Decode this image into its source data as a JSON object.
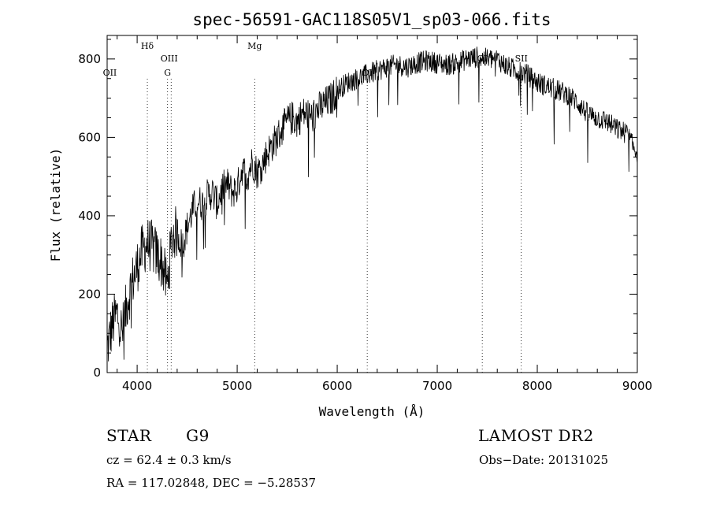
{
  "chart_data": {
    "type": "line",
    "title": "spec-56591-GAC118S05V1_sp03-066.fits",
    "xlabel": "Wavelength (Å)",
    "ylabel": "Flux (relative)",
    "xlim": [
      3700,
      9000
    ],
    "ylim": [
      0,
      860
    ],
    "xticks": [
      4000,
      5000,
      6000,
      7000,
      8000,
      9000
    ],
    "yticks": [
      0,
      200,
      400,
      600,
      800
    ],
    "grid": false,
    "series": [
      {
        "x": [
          3700,
          3750,
          3800,
          3850,
          3900,
          3950,
          4000,
          4050,
          4100,
          4150,
          4200,
          4250,
          4300,
          4350,
          4400,
          4450,
          4500,
          4550,
          4600,
          4650,
          4700,
          4750,
          4800,
          4850,
          4900,
          4950,
          5000,
          5050,
          5100,
          5150,
          5200,
          5250,
          5300,
          5350,
          5400,
          5450,
          5500,
          5550,
          5600,
          5650,
          5700,
          5750,
          5800,
          5850,
          5900,
          5950,
          6000,
          6100,
          6200,
          6300,
          6400,
          6500,
          6600,
          6700,
          6800,
          6900,
          7000,
          7100,
          7200,
          7300,
          7400,
          7500,
          7600,
          7700,
          7800,
          7900,
          8000,
          8100,
          8200,
          8300,
          8400,
          8500,
          8600,
          8700,
          8800,
          8900,
          8950,
          9000
        ],
        "y": [
          60,
          120,
          150,
          100,
          180,
          230,
          270,
          310,
          330,
          320,
          300,
          280,
          220,
          350,
          360,
          320,
          370,
          410,
          440,
          430,
          450,
          460,
          430,
          470,
          480,
          460,
          470,
          520,
          500,
          540,
          510,
          530,
          560,
          580,
          600,
          620,
          640,
          650,
          640,
          660,
          660,
          650,
          670,
          680,
          690,
          700,
          720,
          740,
          750,
          760,
          770,
          780,
          785,
          780,
          790,
          795,
          790,
          785,
          790,
          800,
          805,
          800,
          800,
          780,
          770,
          760,
          740,
          730,
          720,
          710,
          690,
          660,
          650,
          640,
          620,
          610,
          580,
          560
        ]
      }
    ],
    "annotations": [
      {
        "label": "OII",
        "x": 3727,
        "row": 3
      },
      {
        "label": "Hδ",
        "x": 4102,
        "row": 1
      },
      {
        "label": "OIII",
        "x": 4320,
        "row": 2
      },
      {
        "label": "G",
        "x": 4304,
        "row": 3
      },
      {
        "label": "Mg",
        "x": 5175,
        "row": 1
      },
      {
        "label": "OI",
        "x": 6300,
        "row": 3
      },
      {
        "label": "OI",
        "x": 7450,
        "row": 2
      },
      {
        "label": "SII",
        "x": 7840,
        "row": 2
      }
    ],
    "features": [
      {
        "x": 4102
      },
      {
        "x": 4304
      },
      {
        "x": 4340
      },
      {
        "x": 5175
      },
      {
        "x": 6300
      },
      {
        "x": 7450
      },
      {
        "x": 7840
      }
    ]
  },
  "info": {
    "class_label": "STAR",
    "subclass": "G9",
    "survey": "LAMOST DR2",
    "cz": "cz = 62.4 ± 0.3 km/s",
    "obs_date": "Obs−Date: 20131025",
    "coords": "RA = 117.02848, DEC =  −5.28537"
  }
}
